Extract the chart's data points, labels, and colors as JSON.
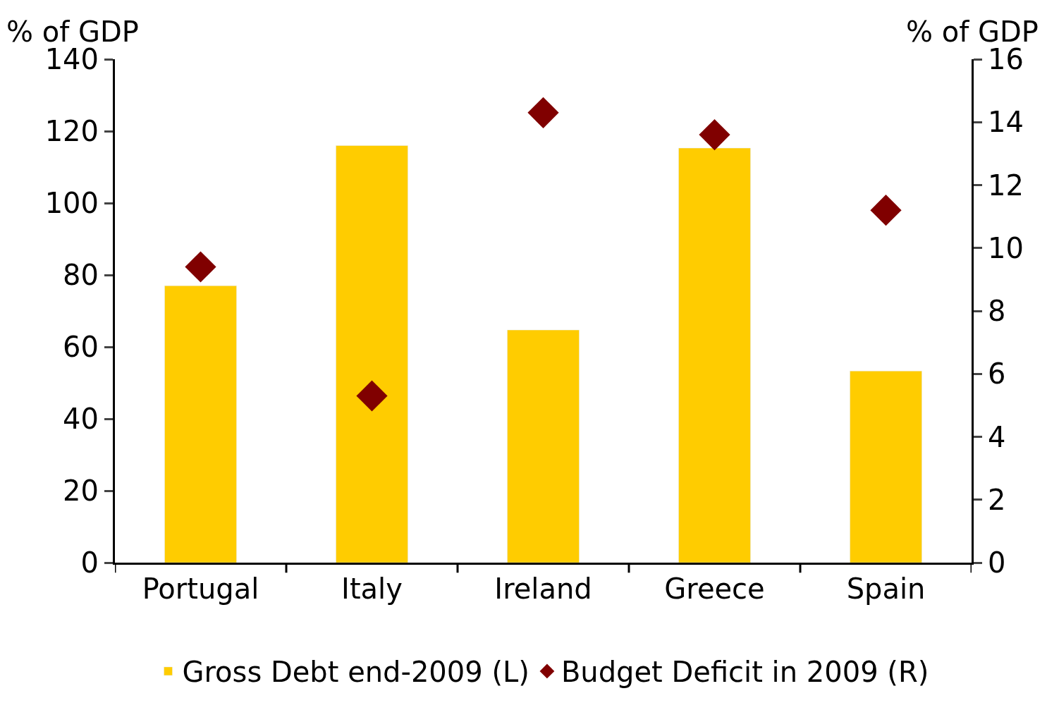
{
  "chart_data": {
    "type": "bar",
    "ylabel": "% of GDP",
    "y2label": "% of GDP",
    "categories": [
      "Portugal",
      "Italy",
      "Ireland",
      "Greece",
      "Spain"
    ],
    "series": [
      {
        "name": "Gross Debt end-2009 (L)",
        "color": "#ffcc00",
        "values": [
          77,
          116,
          64.7,
          115.3,
          53.3
        ]
      },
      {
        "name": "Budget Deficit in 2009 (R)",
        "type": "scatter",
        "axis": "y2",
        "marker": "diamond",
        "color": "#800000",
        "values": [
          9.4,
          5.3,
          14.3,
          13.6,
          11.2
        ]
      }
    ],
    "ylim": [
      0,
      140
    ],
    "yticks": [
      0,
      20,
      40,
      60,
      80,
      100,
      120,
      140
    ],
    "y2lim": [
      0,
      16
    ],
    "y2ticks": [
      0,
      2,
      4,
      6,
      8,
      10,
      12,
      14,
      16
    ],
    "legend": "bottom"
  }
}
